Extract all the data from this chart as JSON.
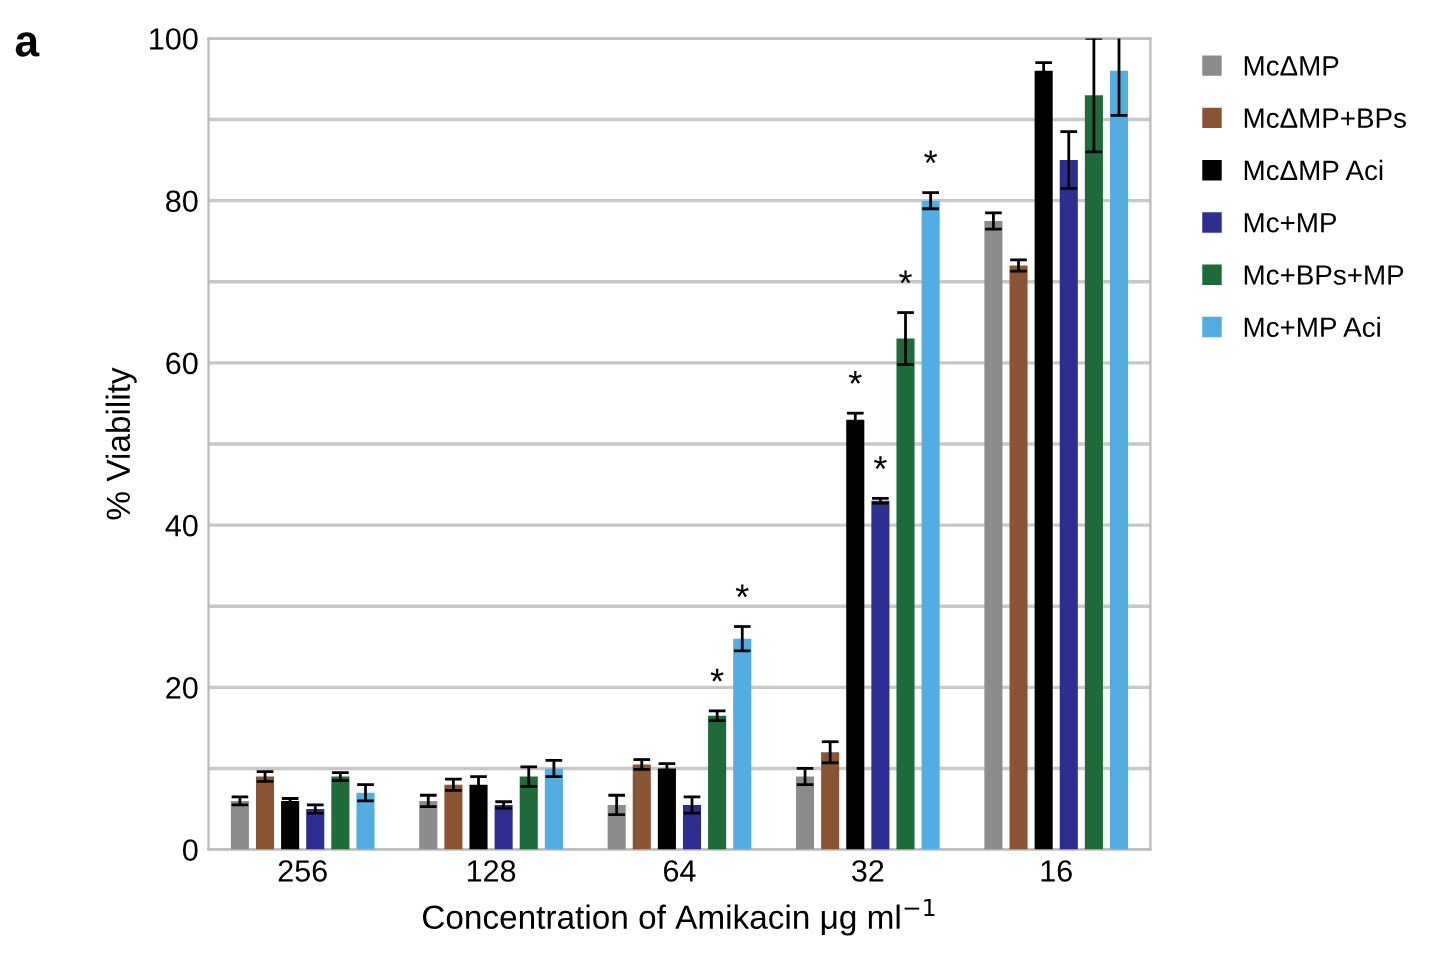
{
  "chart_data": {
    "type": "bar",
    "xlabel": "Concentration of Amikacin μg ml$^{−1}$",
    "ylabel": "% Viability",
    "categories": [
      "256",
      "128",
      "64",
      "32",
      "16"
    ],
    "series": [
      {
        "name": "McΔMP",
        "color": "#8c8c8c",
        "values": [
          6,
          6,
          5.5,
          9,
          77.5
        ],
        "errors": [
          0.5,
          0.7,
          1.2,
          1,
          1
        ]
      },
      {
        "name": "McΔMP+BPs",
        "color": "#8a5533",
        "values": [
          9,
          8,
          10.5,
          12,
          72
        ],
        "errors": [
          0.6,
          0.7,
          0.6,
          1.3,
          0.7
        ]
      },
      {
        "name": "McΔMP Aci",
        "color": "#000000",
        "values": [
          6,
          8,
          10,
          53,
          96
        ],
        "errors": [
          0.3,
          1,
          0.6,
          0.8,
          1
        ],
        "value_labels": [
          null,
          null,
          null,
          "*",
          null
        ]
      },
      {
        "name": "Mc+MP",
        "color": "#2e2e92",
        "values": [
          5,
          5.5,
          5.5,
          43,
          85
        ],
        "errors": [
          0.5,
          0.4,
          1,
          0.3,
          3.5
        ],
        "value_labels": [
          null,
          null,
          null,
          "*",
          null
        ]
      },
      {
        "name": "Mc+BPs+MP",
        "color": "#1e6b3a",
        "values": [
          9,
          9,
          16.5,
          63,
          93
        ],
        "errors": [
          0.5,
          1.2,
          0.6,
          3.2,
          7
        ],
        "value_labels": [
          null,
          null,
          "*",
          "*",
          null
        ]
      },
      {
        "name": "Mc+MP Aci",
        "color": "#52ade2",
        "values": [
          7,
          10,
          26,
          80,
          96
        ],
        "errors": [
          1,
          1,
          1.5,
          1,
          5.5
        ],
        "value_labels": [
          null,
          null,
          "*",
          "*",
          null
        ]
      }
    ],
    "ylim": [
      0,
      100
    ],
    "yticks": [
      0,
      {
        "value": 10,
        "label": null
      },
      20,
      {
        "value": 30,
        "label": null
      },
      40,
      {
        "value": 50,
        "label": null
      },
      60,
      {
        "value": 70,
        "label": null
      },
      80,
      {
        "value": 90,
        "label": null
      },
      100
    ],
    "grid": "y",
    "legend": "right",
    "annotations": [
      "a"
    ]
  }
}
